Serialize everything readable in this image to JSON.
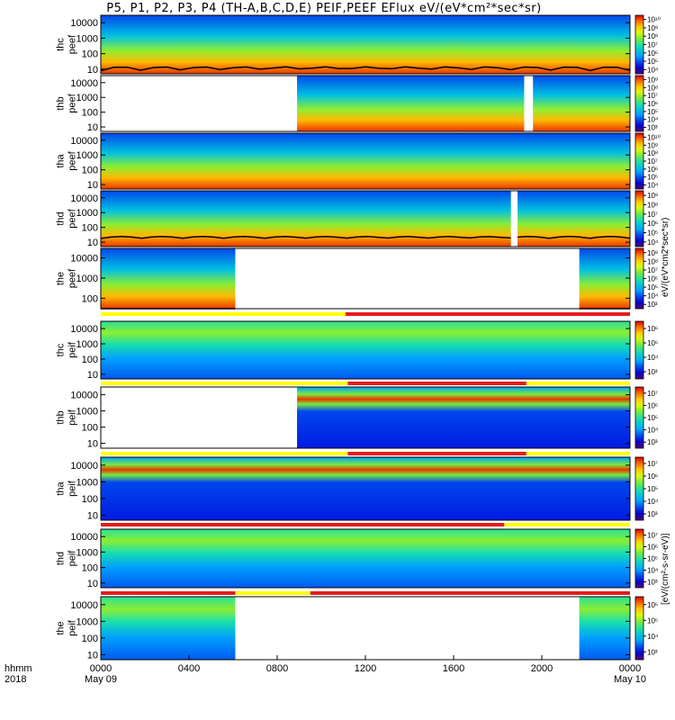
{
  "title": "P5, P1, P2, P3, P4 (TH-A,B,C,D,E) PEIF,PEEF EFlux eV/(eV*cm²*sec*sr)",
  "colorbar_unit_label": "[eV/(cm²-s-sr-eV)]",
  "colorbar_units_generic": "eV/(eV*cm2*sec*sr)",
  "xaxis": {
    "time_label": "hhmm",
    "year_label": "2018",
    "ticks": [
      "0000",
      "0400",
      "0800",
      "1200",
      "1600",
      "2000",
      "0000"
    ],
    "tick_hours": [
      0,
      4,
      8,
      12,
      16,
      20,
      24
    ],
    "date_labels": [
      "May 09",
      "May 10"
    ]
  },
  "chart_data": {
    "type": "heatmap",
    "x_unit": "hours since 2018-05-09 00:00",
    "xlim": [
      0,
      24
    ],
    "y_scale": "log",
    "colormap": "rainbow",
    "panels": [
      {
        "ylabel_top": "thc",
        "ylabel_bottom": "peef",
        "ylim": [
          5,
          30000
        ],
        "yticks": [
          "10",
          "100",
          "1000",
          "10000"
        ],
        "cb_ticks": [
          "10⁴",
          "10⁵",
          "10⁶",
          "10⁷",
          "10⁸",
          "10⁹",
          "10¹⁰"
        ],
        "data_coverage": [
          [
            0,
            24
          ]
        ],
        "overlay_line": true
      },
      {
        "ylabel_top": "thb",
        "ylabel_bottom": "peef",
        "ylim": [
          5,
          30000
        ],
        "yticks": [
          "10",
          "100",
          "1000",
          "10000"
        ],
        "cb_ticks": [
          "10³",
          "10⁴",
          "10⁵",
          "10⁶",
          "10⁷",
          "10⁸",
          "10⁹"
        ],
        "data_coverage": [
          [
            8.9,
            19.2
          ],
          [
            19.6,
            24
          ]
        ]
      },
      {
        "ylabel_top": "tha",
        "ylabel_bottom": "peef",
        "ylim": [
          5,
          30000
        ],
        "yticks": [
          "10",
          "100",
          "1000",
          "10000"
        ],
        "cb_ticks": [
          "10⁴",
          "10⁵",
          "10⁶",
          "10⁷",
          "10⁸",
          "10⁹",
          "10¹⁰"
        ],
        "data_coverage": [
          [
            0,
            24
          ]
        ]
      },
      {
        "ylabel_top": "thd",
        "ylabel_bottom": "peef",
        "ylim": [
          5,
          30000
        ],
        "yticks": [
          "10",
          "100",
          "1000",
          "10000"
        ],
        "cb_ticks": [
          "10⁴",
          "10⁵",
          "10⁶",
          "10⁷",
          "10⁸",
          "10⁹"
        ],
        "data_coverage": [
          [
            0,
            18.6
          ],
          [
            18.9,
            24
          ]
        ],
        "overlay_line": true
      },
      {
        "ylabel_top": "the",
        "ylabel_bottom": "peef",
        "ylim": [
          30,
          30000
        ],
        "yticks": [
          "100",
          "1000",
          "10000"
        ],
        "cb_ticks": [
          "10³",
          "10⁴",
          "10⁵",
          "10⁶",
          "10⁷",
          "10⁸",
          "10⁹"
        ],
        "data_coverage": [
          [
            0,
            6.1
          ],
          [
            21.7,
            24
          ]
        ],
        "overlay_line": true
      },
      {
        "ylabel_top": "thc",
        "ylabel_bottom": "peif",
        "ylim": [
          5,
          30000
        ],
        "yticks": [
          "10",
          "100",
          "1000",
          "10000"
        ],
        "cb_ticks": [
          "10³",
          "10⁴",
          "10⁵",
          "10⁶"
        ],
        "data_coverage": [
          [
            0,
            24
          ]
        ]
      },
      {
        "ylabel_top": "thb",
        "ylabel_bottom": "peif",
        "ylim": [
          5,
          30000
        ],
        "yticks": [
          "10",
          "100",
          "1000",
          "10000"
        ],
        "cb_ticks": [
          "10³",
          "10⁴",
          "10⁵",
          "10⁶",
          "10⁷"
        ],
        "data_coverage": [
          [
            8.9,
            24
          ]
        ]
      },
      {
        "ylabel_top": "tha",
        "ylabel_bottom": "peif",
        "ylim": [
          5,
          30000
        ],
        "yticks": [
          "10",
          "100",
          "1000",
          "10000"
        ],
        "cb_ticks": [
          "10³",
          "10⁴",
          "10⁵",
          "10⁶",
          "10⁷"
        ],
        "data_coverage": [
          [
            0,
            24
          ]
        ]
      },
      {
        "ylabel_top": "thd",
        "ylabel_bottom": "peif",
        "ylim": [
          5,
          30000
        ],
        "yticks": [
          "10",
          "100",
          "1000",
          "10000"
        ],
        "cb_ticks": [
          "10³",
          "10⁴",
          "10⁵",
          "10⁶",
          "10⁷"
        ],
        "data_coverage": [
          [
            0,
            24
          ]
        ]
      },
      {
        "ylabel_top": "the",
        "ylabel_bottom": "peif",
        "ylim": [
          5,
          30000
        ],
        "yticks": [
          "10",
          "100",
          "1000",
          "10000"
        ],
        "cb_ticks": [
          "10³",
          "10⁴",
          "10⁵",
          "10⁶"
        ],
        "data_coverage": [
          [
            0,
            6.1
          ],
          [
            21.7,
            24
          ]
        ]
      }
    ],
    "mode_bars": [
      {
        "after_panel": 5,
        "segments": [
          [
            0,
            11.1,
            "yellow"
          ],
          [
            11.1,
            24,
            "red"
          ]
        ]
      },
      {
        "after_panel": 6,
        "segments": [
          [
            0,
            11.2,
            "yellow"
          ],
          [
            11.2,
            19.3,
            "red"
          ],
          [
            19.3,
            24,
            "yellow"
          ]
        ]
      },
      {
        "after_panel": 7,
        "segments": [
          [
            0,
            11.2,
            "yellow"
          ],
          [
            11.2,
            19.3,
            "red"
          ],
          [
            19.3,
            24,
            "yellow"
          ]
        ]
      },
      {
        "after_panel": 8,
        "segments": [
          [
            0,
            18.3,
            "red"
          ],
          [
            18.3,
            24,
            "yellow"
          ]
        ]
      },
      {
        "after_panel": 9,
        "segments": [
          [
            0,
            6.1,
            "red"
          ],
          [
            6.1,
            9.5,
            "yellow"
          ],
          [
            9.5,
            24,
            "red"
          ]
        ]
      }
    ]
  }
}
